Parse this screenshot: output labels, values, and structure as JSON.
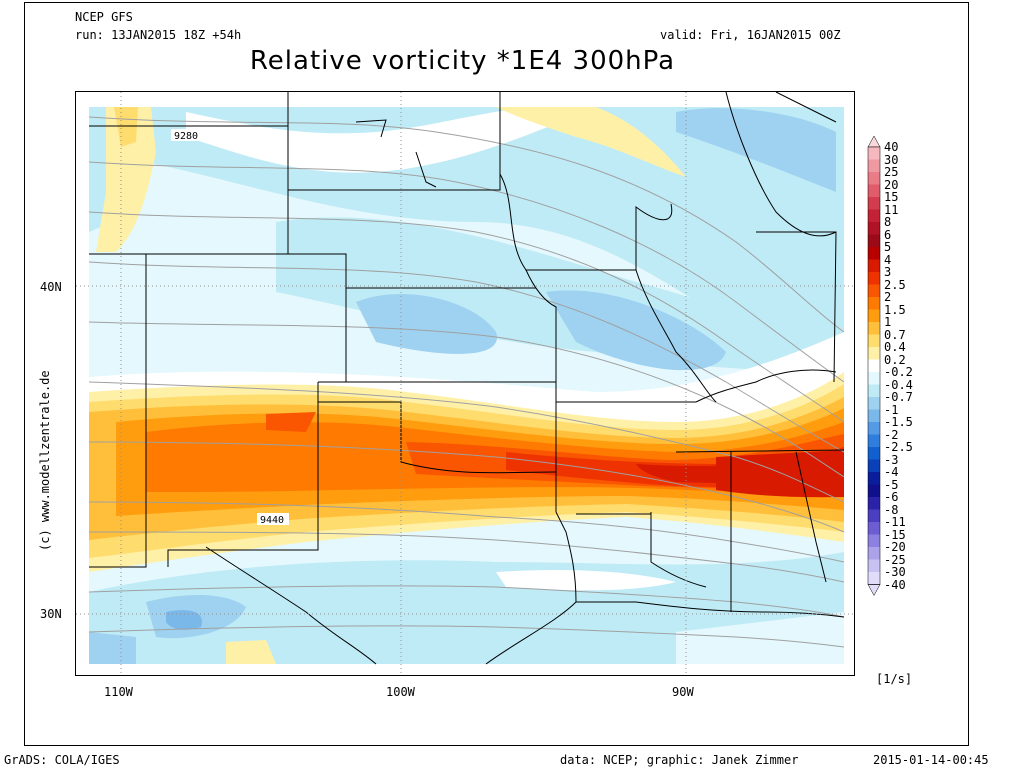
{
  "header": {
    "model": "NCEP GFS",
    "run": "run: 13JAN2015 18Z +54h",
    "valid": "valid: Fri, 16JAN2015 00Z",
    "title": "Relative vorticity *1E4 300hPa"
  },
  "map": {
    "lat_labels": [
      "40N",
      "30N"
    ],
    "lon_labels": [
      "110W",
      "100W",
      "90W"
    ],
    "contour_labels": [
      "9280",
      "9440"
    ],
    "watermark": "(c) www.modellzentrale.de"
  },
  "colorbar": {
    "units": "[1/s]",
    "levels": [
      {
        "label": "40",
        "color": "#fbd8dc"
      },
      {
        "label": "30",
        "color": "#f5b8be"
      },
      {
        "label": "25",
        "color": "#ef9aa2"
      },
      {
        "label": "20",
        "color": "#e97c86"
      },
      {
        "label": "15",
        "color": "#e05c6a"
      },
      {
        "label": "11",
        "color": "#d33c4e"
      },
      {
        "label": "8",
        "color": "#c42234"
      },
      {
        "label": "6",
        "color": "#b01424"
      },
      {
        "label": "5",
        "color": "#9c0a18"
      },
      {
        "label": "4",
        "color": "#b80000"
      },
      {
        "label": "3",
        "color": "#d81a00"
      },
      {
        "label": "2.5",
        "color": "#ee3300"
      },
      {
        "label": "2",
        "color": "#fa5500"
      },
      {
        "label": "1.5",
        "color": "#ff7a00"
      },
      {
        "label": "1",
        "color": "#ff9d0f"
      },
      {
        "label": "0.7",
        "color": "#ffbf3a"
      },
      {
        "label": "0.4",
        "color": "#ffdc6e"
      },
      {
        "label": "0.2",
        "color": "#fff0a8"
      },
      {
        "label": "-0.2",
        "color": "#ffffff"
      },
      {
        "label": "-0.4",
        "color": "#e4f8fd"
      },
      {
        "label": "-0.7",
        "color": "#bfebf6"
      },
      {
        "label": "-1",
        "color": "#9ed2f0"
      },
      {
        "label": "-1.5",
        "color": "#7ab8ea"
      },
      {
        "label": "-2",
        "color": "#559ae4"
      },
      {
        "label": "-2.5",
        "color": "#2f7ddc"
      },
      {
        "label": "-3",
        "color": "#1260d0"
      },
      {
        "label": "-4",
        "color": "#0a40b8"
      },
      {
        "label": "-5",
        "color": "#0a1e9c"
      },
      {
        "label": "-6",
        "color": "#10108c"
      },
      {
        "label": "-8",
        "color": "#2a22a8"
      },
      {
        "label": "-11",
        "color": "#4c3ec0"
      },
      {
        "label": "-15",
        "color": "#6c5ed2"
      },
      {
        "label": "-20",
        "color": "#8c80e0"
      },
      {
        "label": "-25",
        "color": "#aca2ea"
      },
      {
        "label": "-30",
        "color": "#c8c2f2"
      },
      {
        "label": "-40",
        "color": "#e0dcfa"
      }
    ],
    "pointer_color": "#e0dcfa"
  },
  "footer": {
    "left": "GrADS: COLA/IGES",
    "center": "data: NCEP; graphic: Janek Zimmer",
    "right": "2015-01-14-00:45"
  }
}
